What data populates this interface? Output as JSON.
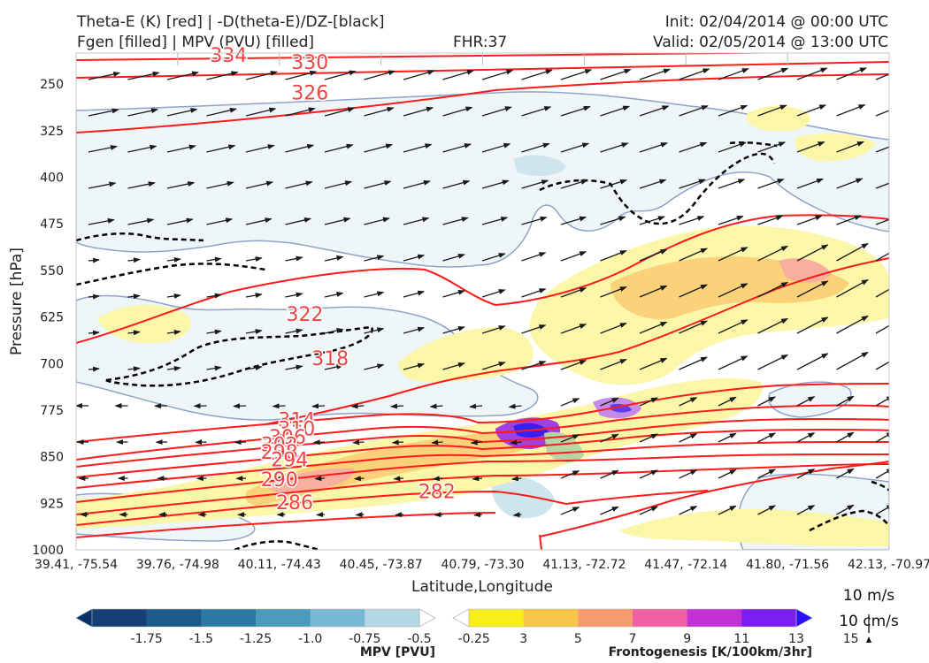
{
  "header": {
    "title_line1": "Theta-E (K) [red] | -D(theta-E)/DZ-[black]",
    "title_line2": "Fgen [filled] | MPV (PVU) [filled]",
    "forecast_hour": "FHR:37",
    "init": "Init: 02/04/2014 @ 00:00 UTC",
    "valid": "Valid: 02/05/2014 @ 13:00 UTC"
  },
  "axes": {
    "ylabel": "Pressure [hPa]",
    "xlabel": "Latitude,Longitude",
    "yticks": [
      "250",
      "325",
      "400",
      "475",
      "550",
      "625",
      "700",
      "775",
      "850",
      "925",
      "1000"
    ],
    "xticks": [
      "39.41, -75.54",
      "39.76, -74.98",
      "40.11, -74.43",
      "40.45, -73.87",
      "40.79, -73.30",
      "41.13, -72.72",
      "41.47, -72.14",
      "41.80, -71.56",
      "42.13, -70.97"
    ]
  },
  "wind_key": {
    "label1": "10 m/s",
    "label2": "10 cm/s"
  },
  "colorbars": {
    "mpv": {
      "label": "MPV [PVU]",
      "ticks": [
        "-1.75",
        "-1.5",
        "-1.25",
        "-1.0",
        "-0.75",
        "-0.5",
        "-0.25"
      ],
      "colors": [
        "#08306b",
        "#173f77",
        "#1b5c8d",
        "#2b7aa3",
        "#4a9abd",
        "#79b8d2",
        "#b5d8e6",
        "#ffffff"
      ]
    },
    "fgen": {
      "label": "Frontogenesis [K/100km/3hr]",
      "ticks": [
        "3",
        "5",
        "7",
        "9",
        "11",
        "13",
        "15"
      ],
      "colors": [
        "#ffffff",
        "#f8ef1a",
        "#f9c548",
        "#f79a6e",
        "#f160a4",
        "#c330d6",
        "#7a1ef2",
        "#2a10f5"
      ]
    }
  },
  "chart_data": {
    "type": "cross-section",
    "title": "Theta-E (K) [red] | -D(theta-E)/DZ-[black]",
    "subtitle": "Fgen [filled] | MPV (PVU) [filled]",
    "xlabel": "Latitude,Longitude",
    "ylabel": "Pressure [hPa]",
    "x": [
      "39.41, -75.54",
      "39.76, -74.98",
      "40.11, -74.43",
      "40.45, -73.87",
      "40.79, -73.30",
      "41.13, -72.72",
      "41.47, -72.14",
      "41.80, -71.56",
      "42.13, -70.97"
    ],
    "ylim": [
      1000,
      200
    ],
    "theta_e_labels": [
      {
        "text": "334",
        "x": 1.5,
        "p": 203
      },
      {
        "text": "330",
        "x": 2.3,
        "p": 214
      },
      {
        "text": "326",
        "x": 2.3,
        "p": 263
      },
      {
        "text": "322",
        "x": 2.25,
        "p": 620
      },
      {
        "text": "318",
        "x": 2.5,
        "p": 691
      },
      {
        "text": "314",
        "x": 2.17,
        "p": 790
      },
      {
        "text": "310",
        "x": 2.17,
        "p": 804
      },
      {
        "text": "306",
        "x": 2.08,
        "p": 818
      },
      {
        "text": "302",
        "x": 2.0,
        "p": 830
      },
      {
        "text": "298",
        "x": 2.0,
        "p": 842
      },
      {
        "text": "294",
        "x": 2.1,
        "p": 854
      },
      {
        "text": "290",
        "x": 2.0,
        "p": 886
      },
      {
        "text": "286",
        "x": 2.15,
        "p": 923
      },
      {
        "text": "282",
        "x": 3.55,
        "p": 905
      }
    ]
  }
}
